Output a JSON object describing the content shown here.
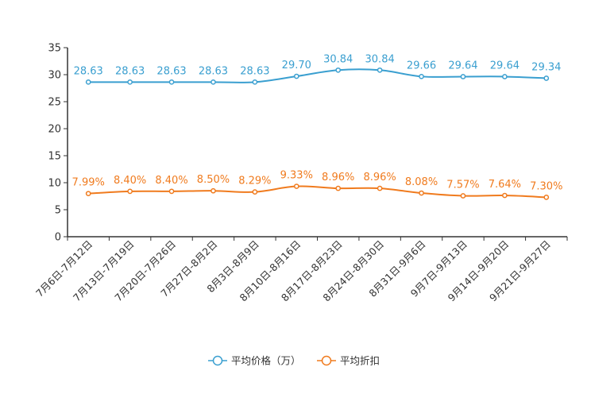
{
  "chart_data": {
    "type": "line",
    "title": "",
    "xlabel": "",
    "ylabel": "",
    "ylim": [
      0,
      35
    ],
    "yticks": [
      0,
      5,
      10,
      15,
      20,
      25,
      30,
      35
    ],
    "grid": false,
    "legend_position": "bottom-center",
    "categories": [
      "7月6日-7月12日",
      "7月13日-7月19日",
      "7月20日-7月26日",
      "7月27日-8月2日",
      "8月3日-8月9日",
      "8月10日-8月16日",
      "8月17日-8月23日",
      "8月24日-8月30日",
      "8月31日-9月6日",
      "9月7日-9月13日",
      "9月14日-9月20日",
      "9月21日-9月27日"
    ],
    "series": [
      {
        "name": "平均价格（万）",
        "color": "#3a9fd0",
        "values": [
          28.63,
          28.63,
          28.63,
          28.63,
          28.63,
          29.7,
          30.84,
          30.84,
          29.66,
          29.64,
          29.64,
          29.34
        ],
        "labels": [
          "28.63",
          "28.63",
          "28.63",
          "28.63",
          "28.63",
          "29.70",
          "30.84",
          "30.84",
          "29.66",
          "29.64",
          "29.64",
          "29.34"
        ]
      },
      {
        "name": "平均折扣",
        "color": "#f07b1e",
        "values": [
          7.99,
          8.4,
          8.4,
          8.5,
          8.29,
          9.33,
          8.96,
          8.96,
          8.08,
          7.57,
          7.64,
          7.3
        ],
        "labels": [
          "7.99%",
          "8.40%",
          "8.40%",
          "8.50%",
          "8.29%",
          "9.33%",
          "8.96%",
          "8.96%",
          "8.08%",
          "7.57%",
          "7.64%",
          "7.30%"
        ]
      }
    ]
  }
}
